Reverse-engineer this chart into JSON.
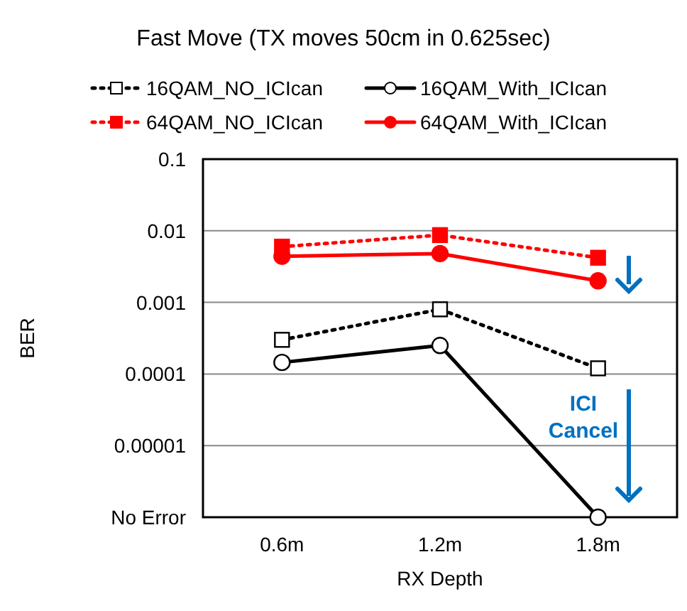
{
  "chart_data": {
    "type": "line",
    "title": "Fast Move (TX moves 50cm in 0.625sec)",
    "xlabel": "RX Depth",
    "ylabel": "BER",
    "categories": [
      "0.6m",
      "1.2m",
      "1.8m"
    ],
    "series": [
      {
        "name": "16QAM_NO_ICIcan",
        "color": "#000000",
        "values": [
          0.0003,
          0.0008,
          0.00012
        ],
        "marker": "square",
        "line_style": "dotted"
      },
      {
        "name": "16QAM_With_ICIcan",
        "color": "#000000",
        "values": [
          0.000145,
          0.00025,
          1e-06
        ],
        "marker": "circle",
        "line_style": "solid"
      },
      {
        "name": "64QAM_NO_ICIcan",
        "color": "#ff0000",
        "values": [
          0.006,
          0.0087,
          0.0042
        ],
        "marker": "square",
        "line_style": "dotted"
      },
      {
        "name": "64QAM_With_ICIcan",
        "color": "#ff0000",
        "values": [
          0.0044,
          0.0048,
          0.002
        ],
        "marker": "circle",
        "line_style": "solid"
      }
    ],
    "log": "y",
    "ylim": [
      1e-06,
      0.1
    ],
    "yticks": [
      {
        "value": 1e-06,
        "label": "No Error"
      },
      {
        "value": 1e-05,
        "label": "0.00001"
      },
      0.0001,
      0.001,
      0.01,
      0.1
    ],
    "grid": "y",
    "legend": "top",
    "annotations": [
      "ICI Cancel"
    ]
  }
}
